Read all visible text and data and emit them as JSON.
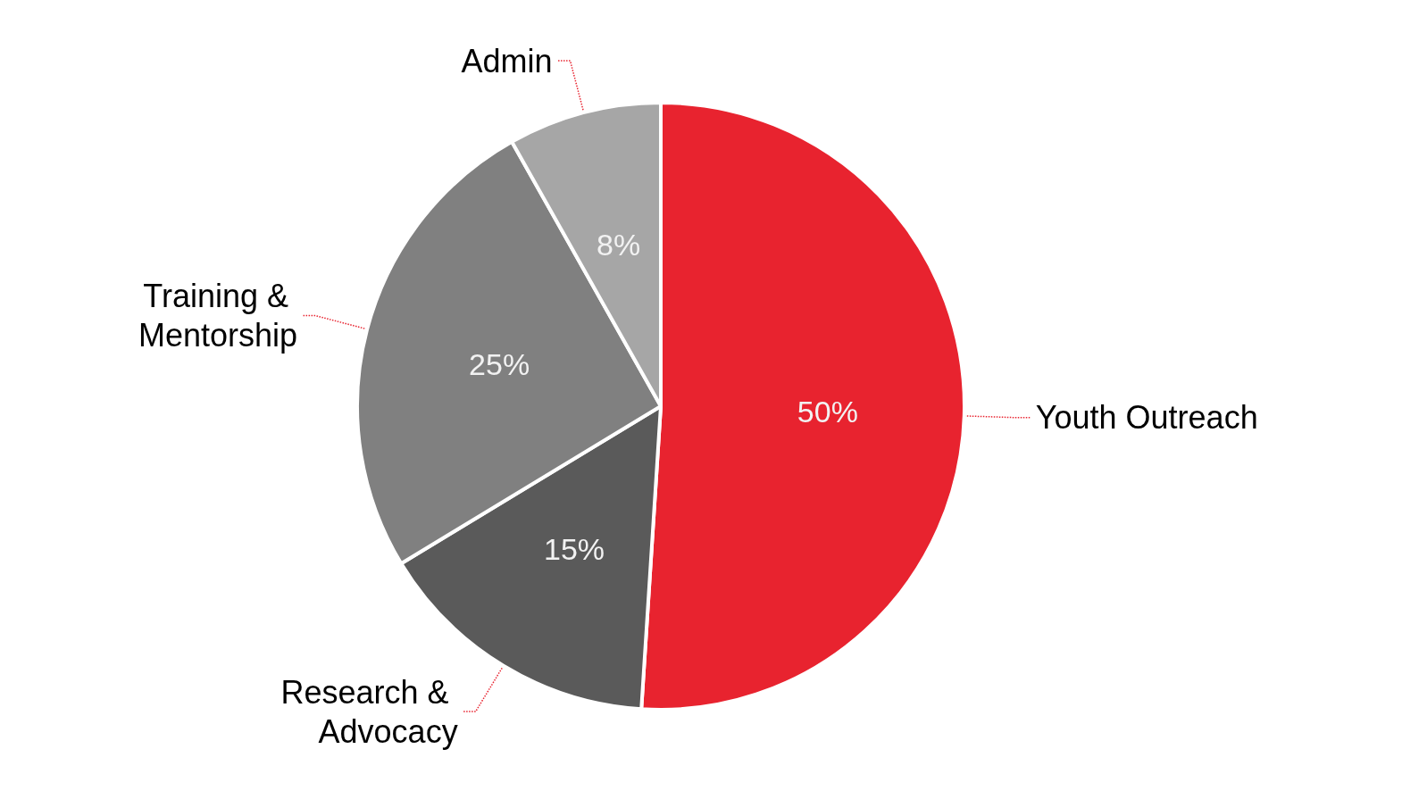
{
  "chart_data": {
    "type": "pie",
    "categories": [
      "Youth Outreach",
      "Research & Advocacy",
      "Training & Mentorship",
      "Admin"
    ],
    "values": [
      50,
      15,
      25,
      8
    ],
    "value_labels": [
      "50%",
      "15%",
      "25%",
      "8%"
    ],
    "colors": [
      "#e8232f",
      "#5a5a5a",
      "#808080",
      "#a6a6a6"
    ],
    "legend": false
  }
}
